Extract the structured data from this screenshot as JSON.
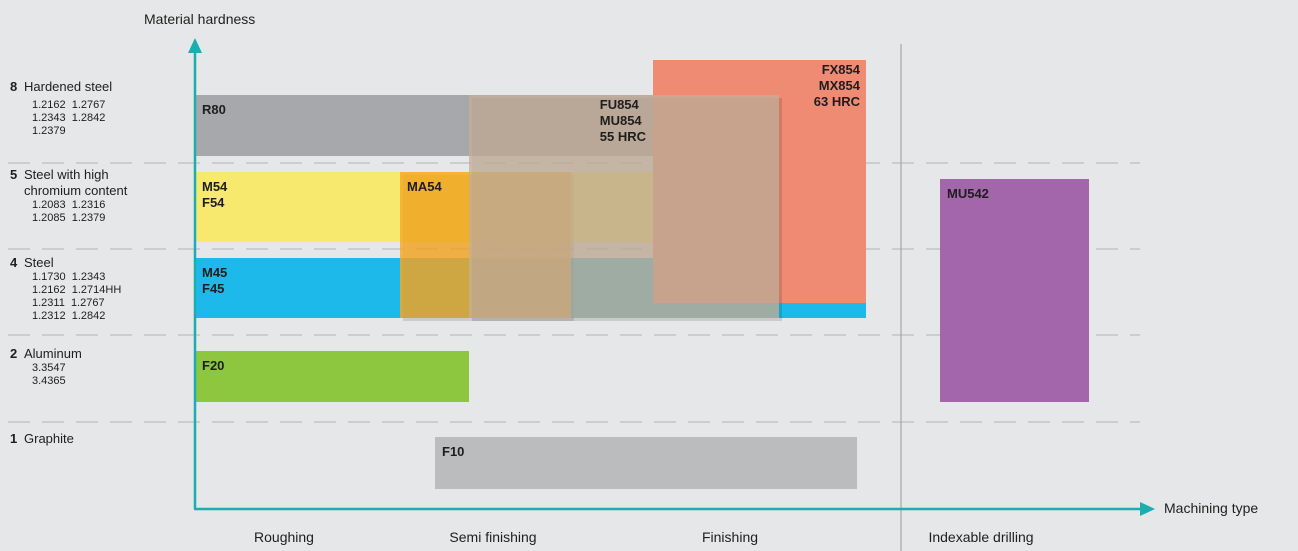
{
  "chart_data": {
    "type": "table",
    "y_axis_label": "Material hardness",
    "x_axis_label": "Machining type",
    "categories": [
      {
        "number": "8",
        "name": "Hardened steel",
        "grades": [
          "1.2162  1.2767",
          "1.2343  1.2842",
          "1.2379"
        ]
      },
      {
        "number": "5",
        "name": "Steel with high\nchromium content",
        "grades": [
          "1.2083  1.2316",
          "1.2085  1.2379"
        ]
      },
      {
        "number": "4",
        "name": "Steel",
        "grades": [
          "1.1730  1.2343",
          "1.2162  1.2714HH",
          "1.2311  1.2767",
          "1.2312  1.2842"
        ]
      },
      {
        "number": "2",
        "name": "Aluminum",
        "grades": [
          "3.3547",
          "3.4365"
        ]
      },
      {
        "number": "1",
        "name": "Graphite",
        "grades": []
      }
    ],
    "machining_types": [
      "Roughing",
      "Semi finishing",
      "Finishing",
      "Indexable drilling"
    ],
    "bars": [
      {
        "label": "R80",
        "color": "#a7a8ab",
        "opacity": 1.0,
        "materials": [
          "8"
        ],
        "machining": "Roughing to Finishing"
      },
      {
        "label": "M54\nF54",
        "color": "#f6e96e",
        "opacity": 1.0,
        "materials": [
          "5"
        ],
        "machining": "Roughing to Finishing"
      },
      {
        "label": "M45\nF45",
        "color": "#1db9ea",
        "opacity": 1.0,
        "materials": [
          "4"
        ],
        "machining": "Roughing to Finishing"
      },
      {
        "label": "F20",
        "color": "#8dc63f",
        "opacity": 1.0,
        "materials": [
          "2"
        ],
        "machining": "Roughing"
      },
      {
        "label": "F10",
        "color": "#bbbcbe",
        "opacity": 1.0,
        "materials": [
          "1"
        ],
        "machining": "Semi finishing to Finishing"
      },
      {
        "label": "MU542",
        "color": "#a466aa",
        "opacity": 1.0,
        "materials": [
          "5",
          "4",
          "2"
        ],
        "machining": "Indexable drilling"
      },
      {
        "label": "FX854\nMX854\n63 HRC",
        "color": "#ef8a73",
        "opacity": 1.0,
        "materials": [
          "8",
          "5",
          "4"
        ],
        "machining": "Finishing"
      },
      {
        "label": "MA54",
        "color": "#f7a823",
        "opacity": 0.82,
        "materials": [
          "5",
          "4"
        ],
        "machining": "Roughing to Semi finishing"
      },
      {
        "label": "FU854\nMU854\n55 HRC",
        "color": "#c4ae98",
        "opacity": 0.78,
        "materials": [
          "8",
          "5",
          "4"
        ],
        "machining": "Semi finishing to Finishing"
      }
    ],
    "colors": {
      "axis": "#1aaeb0",
      "background": "#e6e7e8",
      "divider": "#b3b3b3"
    }
  }
}
